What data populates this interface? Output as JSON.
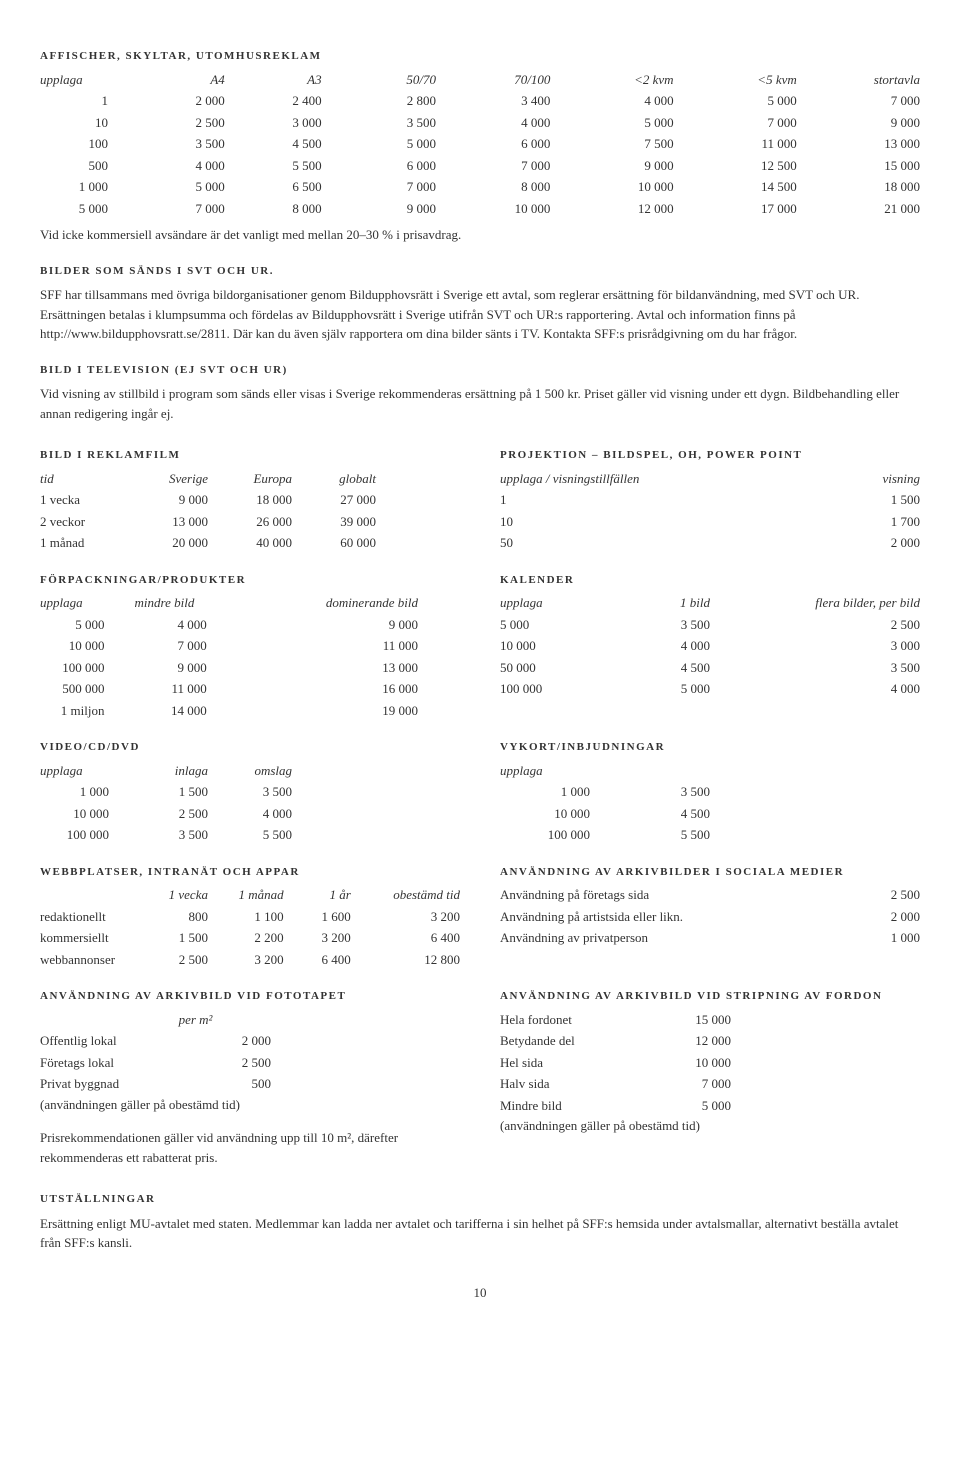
{
  "affischer": {
    "title": "AFFISCHER, SKYLTAR, UTOMHUSREKLAM",
    "columns": [
      "upplaga",
      "A4",
      "A3",
      "50/70",
      "70/100",
      "<2 kvm",
      "<5 kvm",
      "stortavla"
    ],
    "rows": [
      [
        "1",
        "2 000",
        "2 400",
        "2 800",
        "3 400",
        "4 000",
        "5 000",
        "7 000"
      ],
      [
        "10",
        "2 500",
        "3 000",
        "3 500",
        "4 000",
        "5 000",
        "7 000",
        "9 000"
      ],
      [
        "100",
        "3 500",
        "4 500",
        "5 000",
        "6 000",
        "7 500",
        "11 000",
        "13 000"
      ],
      [
        "500",
        "4 000",
        "5 500",
        "6 000",
        "7 000",
        "9 000",
        "12 500",
        "15 000"
      ],
      [
        "1 000",
        "5 000",
        "6 500",
        "7 000",
        "8 000",
        "10 000",
        "14 500",
        "18 000"
      ],
      [
        "5 000",
        "7 000",
        "8 000",
        "9 000",
        "10 000",
        "12 000",
        "17 000",
        "21 000"
      ]
    ],
    "note": "Vid icke kommersiell avsändare är det vanligt med mellan 20–30 % i prisavdrag."
  },
  "bilder_svt": {
    "title": "BILDER SOM SÄNDS I SVT OCH UR.",
    "body": "SFF har tillsammans med övriga bildorganisationer genom Bildupphovsrätt i Sverige ett avtal, som reglerar ersättning för bildanvändning, med SVT och UR. Ersättningen betalas i klumpsumma och fördelas av Bildupphovsrätt i Sverige utifrån SVT och UR:s rapportering. Avtal och information finns på http://www.bildupphovsratt.se/2811. Där kan du även själv rapportera om dina bilder sänts i TV. Kontakta SFF:s prisrådgivning om du har frågor."
  },
  "bild_tv": {
    "title": "BILD I TELEVISION (EJ SVT OCH UR)",
    "body": "Vid visning av stillbild i program som sänds eller visas i Sverige rekommenderas ersättning på 1 500 kr. Priset gäller vid visning under ett dygn. Bildbehandling eller annan redigering ingår ej."
  },
  "reklamfilm": {
    "title": "BILD I REKLAMFILM",
    "columns": [
      "tid",
      "Sverige",
      "Europa",
      "globalt"
    ],
    "rows": [
      [
        "1 vecka",
        "9 000",
        "18 000",
        "27 000"
      ],
      [
        "2 veckor",
        "13 000",
        "26 000",
        "39 000"
      ],
      [
        "1 månad",
        "20 000",
        "40 000",
        "60 000"
      ]
    ]
  },
  "projektion": {
    "title": "PROJEKTION – bildspel, OH, Power Point",
    "columns": [
      "upplaga / visningstillfällen",
      "visning"
    ],
    "rows": [
      [
        "1",
        "1 500"
      ],
      [
        "10",
        "1 700"
      ],
      [
        "50",
        "2 000"
      ]
    ]
  },
  "forpackningar": {
    "title": "FÖRPACKNINGAR/PRODUKTER",
    "columns": [
      "upplaga",
      "mindre bild",
      "dominerande bild"
    ],
    "rows": [
      [
        "5 000",
        "4 000",
        "9 000"
      ],
      [
        "10 000",
        "7 000",
        "11 000"
      ],
      [
        "100 000",
        "9 000",
        "13 000"
      ],
      [
        "500 000",
        "11 000",
        "16 000"
      ],
      [
        "1 miljon",
        "14 000",
        "19 000"
      ]
    ]
  },
  "kalender": {
    "title": "KALENDER",
    "columns": [
      "upplaga",
      "1 bild",
      "flera bilder, per bild"
    ],
    "rows": [
      [
        "5 000",
        "3 500",
        "2 500"
      ],
      [
        "10 000",
        "4 000",
        "3 000"
      ],
      [
        "50 000",
        "4 500",
        "3 500"
      ],
      [
        "100 000",
        "5 000",
        "4 000"
      ]
    ]
  },
  "video": {
    "title": "VIDEO/CD/DVD",
    "columns": [
      "upplaga",
      "inlaga",
      "omslag"
    ],
    "rows": [
      [
        "1 000",
        "1 500",
        "3 500"
      ],
      [
        "10 000",
        "2 500",
        "4 000"
      ],
      [
        "100 000",
        "3 500",
        "5 500"
      ]
    ]
  },
  "vykort": {
    "title": "VYKORT/INBJUDNINGAR",
    "columns": [
      "upplaga",
      ""
    ],
    "rows": [
      [
        "1 000",
        "3 500"
      ],
      [
        "10 000",
        "4 500"
      ],
      [
        "100 000",
        "5 500"
      ]
    ]
  },
  "webbplatser": {
    "title": "WEBBPLATSER, INTRANÄT OCH APPAR",
    "columns": [
      "",
      "1 vecka",
      "1 månad",
      "1 år",
      "obestämd tid"
    ],
    "rows": [
      [
        "redaktionellt",
        "800",
        "1 100",
        "1 600",
        "3 200"
      ],
      [
        "kommersiellt",
        "1 500",
        "2 200",
        "3 200",
        "6 400"
      ],
      [
        "webbannonser",
        "2 500",
        "3 200",
        "6 400",
        "12 800"
      ]
    ]
  },
  "sociala": {
    "title": "ANVÄNDNING AV ARKIVBILDER I SOCIALA MEDIER",
    "rows": [
      [
        "Användning på företags sida",
        "2 500"
      ],
      [
        "Användning på artistsida eller likn.",
        "2 000"
      ],
      [
        "Användning av privatperson",
        "1 000"
      ]
    ]
  },
  "fototapet": {
    "title": "ANVÄNDNING AV ARKIVBILD VID FOTOTAPET",
    "col_header": "per m²",
    "rows": [
      [
        "Offentlig lokal",
        "2 000"
      ],
      [
        "Företags lokal",
        "2 500"
      ],
      [
        "Privat byggnad",
        "500"
      ]
    ],
    "note1": "(användningen gäller på obestämd tid)",
    "note2": "Prisrekommendationen gäller vid användning upp till 10 m², därefter rekommenderas ett rabatterat pris."
  },
  "fordon": {
    "title": "ANVÄNDNING AV ARKIVBILD VID STRIPNING AV FORDON",
    "rows": [
      [
        "Hela fordonet",
        "15 000"
      ],
      [
        "Betydande del",
        "12 000"
      ],
      [
        "Hel sida",
        "10 000"
      ],
      [
        "Halv sida",
        "7 000"
      ],
      [
        "Mindre bild",
        "5 000"
      ]
    ],
    "note": "(användningen gäller på obestämd tid)"
  },
  "utstallningar": {
    "title": "UTSTÄLLNINGAR",
    "body": "Ersättning enligt MU-avtalet med staten. Medlemmar kan ladda ner avtalet och tarifferna i sin helhet på SFF:s hemsida under avtalsmallar, alternativt beställa avtalet från SFF:s kansli."
  },
  "pagenum": "10"
}
